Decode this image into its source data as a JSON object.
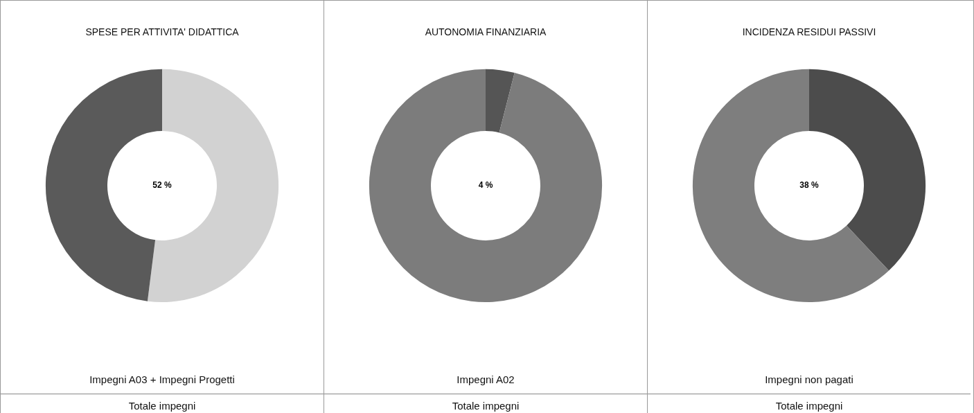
{
  "chart_data": [
    {
      "type": "donut",
      "title": "SPESE PER ATTIVITA' DIDATTICA",
      "categories": [
        null,
        null
      ],
      "values": [
        52,
        48
      ],
      "colors": [
        "#d2d2d2",
        "#5a5a5a"
      ],
      "value_labels": [
        "52 %",
        null
      ],
      "annotations": [
        "Impegni A03 + Impegni Progetti",
        "Totale impegni"
      ]
    },
    {
      "type": "donut",
      "title": "AUTONOMIA FINANZIARIA",
      "categories": [
        null,
        null
      ],
      "values": [
        4,
        96
      ],
      "colors": [
        "#555555",
        "#7c7c7c"
      ],
      "value_labels": [
        "4 %",
        null
      ],
      "annotations": [
        "Impegni A02",
        "Totale impegni"
      ]
    },
    {
      "type": "donut",
      "title": "INCIDENZA RESIDUI PASSIVI",
      "categories": [
        null,
        null
      ],
      "values": [
        38,
        62
      ],
      "colors": [
        "#4c4c4c",
        "#7e7e7e"
      ],
      "value_labels": [
        "38 %",
        null
      ],
      "annotations": [
        "Impegni non pagati",
        "Totale impegni"
      ]
    }
  ]
}
